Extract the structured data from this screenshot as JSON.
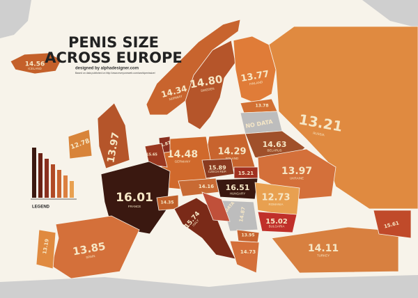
{
  "header": {
    "title_line1": "PENIS SIZE",
    "title_line2": "ACROSS EUROPE",
    "credit": "designed by alphadesigner.com",
    "source": "Based on data published on http://www.everyoneweb.com/worldpenissize/"
  },
  "legend": {
    "title": "LEGEND"
  },
  "countries": [
    {
      "value": "14.56",
      "name": "ICELAND"
    },
    {
      "value": "14.34",
      "name": "NORWAY"
    },
    {
      "value": "14.80",
      "name": "SWEDEN"
    },
    {
      "value": "13.77",
      "name": "FINLAND"
    },
    {
      "value": "13.21",
      "name": "RUSSIA"
    },
    {
      "value": "13.78"
    },
    {
      "value": "NO DATA"
    },
    {
      "value": "14.63",
      "name": "BELARUS"
    },
    {
      "value": "14.29",
      "name": "POLAND"
    },
    {
      "value": "14.48",
      "name": "GERMANY"
    },
    {
      "value": "12.78"
    },
    {
      "value": "13.97"
    },
    {
      "value": "15.87"
    },
    {
      "value": "15.65"
    },
    {
      "value": "16.01",
      "name": "FRANCE"
    },
    {
      "value": "13.85",
      "name": "SPAIN"
    },
    {
      "value": "13.19"
    },
    {
      "value": "14.35"
    },
    {
      "value": "15.74",
      "name": "ITALY"
    },
    {
      "value": "15.89",
      "name": "CZECH REP."
    },
    {
      "value": "14.16"
    },
    {
      "value": "15.21"
    },
    {
      "value": "16.51",
      "name": "HUNGARY"
    },
    {
      "value": "13.97",
      "name": "UKRAINE"
    },
    {
      "value": "12.73",
      "name": "ROMANIA"
    },
    {
      "value": "NO DATA"
    },
    {
      "value": "14.87"
    },
    {
      "value": "15.02",
      "name": "BULGARIA"
    },
    {
      "value": "13.95"
    },
    {
      "value": "14.73"
    },
    {
      "value": "14.11",
      "name": "TURKEY"
    },
    {
      "value": "15.61"
    }
  ]
}
